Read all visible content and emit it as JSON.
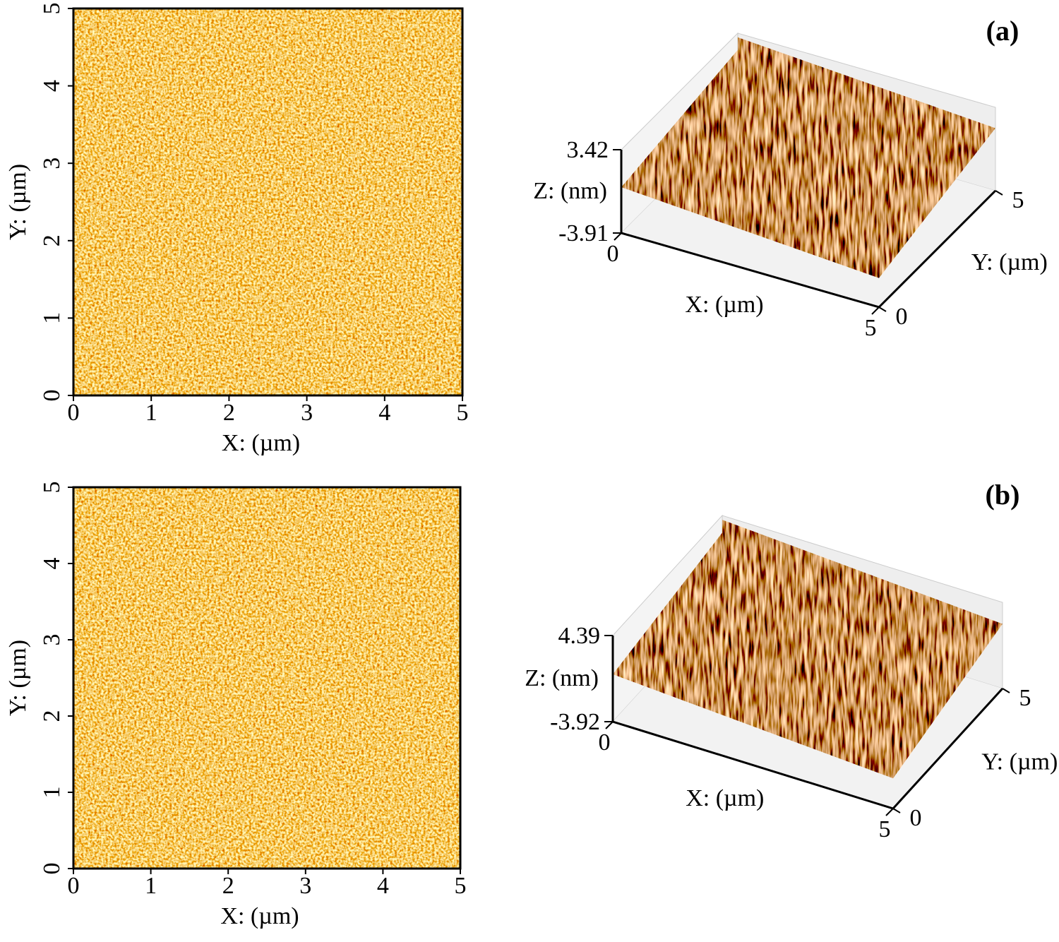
{
  "panels": [
    {
      "label": "(a)",
      "map": {
        "xlabel": "X: (µm)",
        "ylabel": "Y: (µm)",
        "xlim": [
          0,
          5
        ],
        "ylim": [
          0,
          5
        ],
        "xticks": [
          0,
          1,
          2,
          3,
          4,
          5
        ],
        "yticks": [
          0,
          1,
          2,
          3,
          4,
          5
        ]
      },
      "surface": {
        "xlabel": "X: (µm)",
        "ylabel": "Y: (µm)",
        "zlabel": "Z: (nm)",
        "xlim": [
          0,
          5
        ],
        "ylim": [
          0,
          5
        ],
        "zlim": [
          -3.91,
          3.42
        ],
        "xticks": [
          0,
          5
        ],
        "yticks": [
          0,
          5
        ],
        "zticks": [
          -3.91,
          3.42
        ]
      }
    },
    {
      "label": "(b)",
      "map": {
        "xlabel": "X: (µm)",
        "ylabel": "Y: (µm)",
        "xlim": [
          0,
          5
        ],
        "ylim": [
          0,
          5
        ],
        "xticks": [
          0,
          1,
          2,
          3,
          4,
          5
        ],
        "yticks": [
          0,
          1,
          2,
          3,
          4,
          5
        ]
      },
      "surface": {
        "xlabel": "X: (µm)",
        "ylabel": "Y: (µm)",
        "zlabel": "Z: (nm)",
        "xlim": [
          0,
          5
        ],
        "ylim": [
          0,
          5
        ],
        "zlim": [
          -3.92,
          4.39
        ],
        "xticks": [
          0,
          5
        ],
        "yticks": [
          0,
          5
        ],
        "zticks": [
          -3.92,
          4.39
        ]
      }
    }
  ]
}
